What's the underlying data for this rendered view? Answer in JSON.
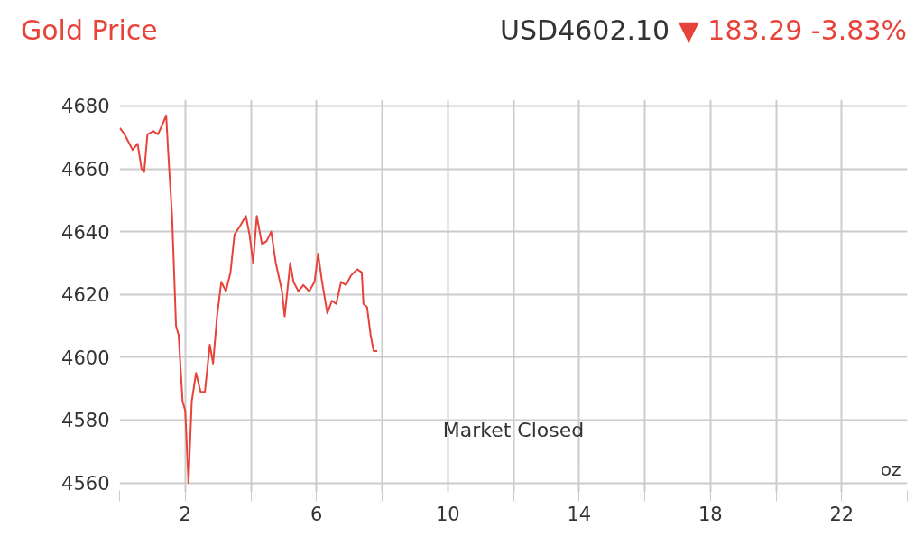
{
  "chart_data": {
    "type": "line",
    "title": "Gold Price",
    "subtitle": "USD4602.10",
    "annotations": [
      "▼ 183.29 -3.83%",
      "Market Closed",
      "oz"
    ],
    "x": [
      0.01,
      0.15,
      0.3,
      0.4,
      0.55,
      0.67,
      0.75,
      0.85,
      1.03,
      1.17,
      1.3,
      1.42,
      1.5,
      1.6,
      1.72,
      1.8,
      1.92,
      2.0,
      2.1,
      2.2,
      2.33,
      2.47,
      2.6,
      2.75,
      2.85,
      2.97,
      3.1,
      3.24,
      3.38,
      3.5,
      3.68,
      3.85,
      3.96,
      4.07,
      4.18,
      4.34,
      4.48,
      4.62,
      4.76,
      4.95,
      5.03,
      5.2,
      5.3,
      5.45,
      5.6,
      5.78,
      5.94,
      6.05,
      6.17,
      6.33,
      6.47,
      6.6,
      6.75,
      6.9,
      7.05,
      7.24,
      7.38,
      7.43,
      7.54,
      7.65,
      7.74,
      7.85
    ],
    "series": [
      {
        "color": "#e8433a",
        "values": [
          4673,
          4671,
          4668,
          4666,
          4668,
          4660,
          4659,
          4671,
          4672,
          4671,
          4674,
          4677,
          4662,
          4645,
          4610,
          4607,
          4586,
          4583,
          4560,
          4586,
          4595,
          4589,
          4589,
          4604,
          4598,
          4613,
          4624,
          4621,
          4627,
          4639,
          4642,
          4645,
          4639,
          4630,
          4645,
          4636,
          4637,
          4640,
          4630,
          4621,
          4613,
          4630,
          4624,
          4621,
          4623,
          4621,
          4624,
          4633,
          4624,
          4614,
          4618,
          4617,
          4624,
          4623,
          4626,
          4628,
          4627,
          4617,
          4616,
          4607,
          4602,
          4602
        ]
      }
    ],
    "xlim": [
      0,
      24
    ],
    "ylim": [
      4557,
      4682
    ],
    "xticks": [
      {
        "value": 0,
        "label": null
      },
      2,
      {
        "value": 4,
        "label": null
      },
      6,
      {
        "value": 8,
        "label": null
      },
      10,
      {
        "value": 12,
        "label": null
      },
      14,
      {
        "value": 16,
        "label": null
      },
      18,
      {
        "value": 20,
        "label": null
      },
      22,
      {
        "value": 24,
        "label": null
      }
    ],
    "yticks": [
      4560,
      4580,
      4600,
      4620,
      4640,
      4660,
      4680
    ],
    "grid": true,
    "line_style": "solid",
    "marker": "none"
  }
}
